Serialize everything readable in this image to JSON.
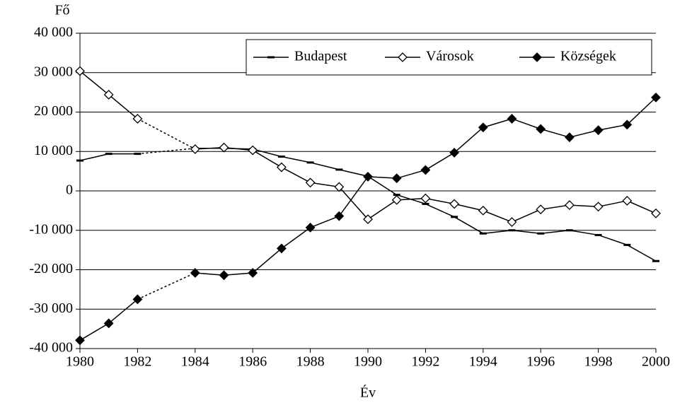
{
  "chart_data": {
    "type": "line",
    "y_label": "Fő",
    "x_label": "Év",
    "x": [
      1980,
      1981,
      1982,
      1984,
      1985,
      1986,
      1987,
      1988,
      1989,
      1990,
      1991,
      1992,
      1993,
      1994,
      1995,
      1996,
      1997,
      1998,
      1999,
      2000
    ],
    "series": [
      {
        "name": "Budapest",
        "color": "#000000",
        "marker": "dash",
        "values": [
          7700,
          9400,
          9400,
          10800,
          10800,
          10600,
          8700,
          7200,
          5400,
          3700,
          -1000,
          -3300,
          -6600,
          -10800,
          -10000,
          -10800,
          -10000,
          -11200,
          -13700,
          -17800
        ]
      },
      {
        "name": "Városok",
        "color": "#000000",
        "marker": "open-diamond",
        "values": [
          30400,
          24400,
          18300,
          10600,
          11000,
          10300,
          6000,
          2100,
          1000,
          -7200,
          -2300,
          -1900,
          -3300,
          -5000,
          -7900,
          -4700,
          -3600,
          -4000,
          -2500,
          -5700
        ]
      },
      {
        "name": "Községek",
        "color": "#000000",
        "marker": "filled-diamond",
        "values": [
          -37900,
          -33600,
          -27500,
          -20800,
          -21400,
          -20800,
          -14600,
          -9300,
          -6400,
          3600,
          3200,
          5300,
          9700,
          16100,
          18300,
          15700,
          13600,
          15400,
          16800,
          23700
        ]
      }
    ],
    "xlim": [
      1980,
      2000
    ],
    "xticks": [
      1980,
      1982,
      1984,
      1986,
      1988,
      1990,
      1992,
      1994,
      1996,
      1998,
      2000
    ],
    "ylim": [
      -40000,
      40000
    ],
    "yticks": [
      {
        "value": -40000,
        "label": "-40 000"
      },
      {
        "value": -30000,
        "label": "-30 000"
      },
      {
        "value": -20000,
        "label": "-20 000"
      },
      {
        "value": -10000,
        "label": "-10 000"
      },
      0,
      {
        "value": 10000,
        "label": "10 000"
      },
      {
        "value": 20000,
        "label": "20 000"
      },
      {
        "value": 30000,
        "label": "30 000"
      },
      {
        "value": 40000,
        "label": "40 000"
      }
    ],
    "grid": true,
    "legend": "upper right"
  }
}
